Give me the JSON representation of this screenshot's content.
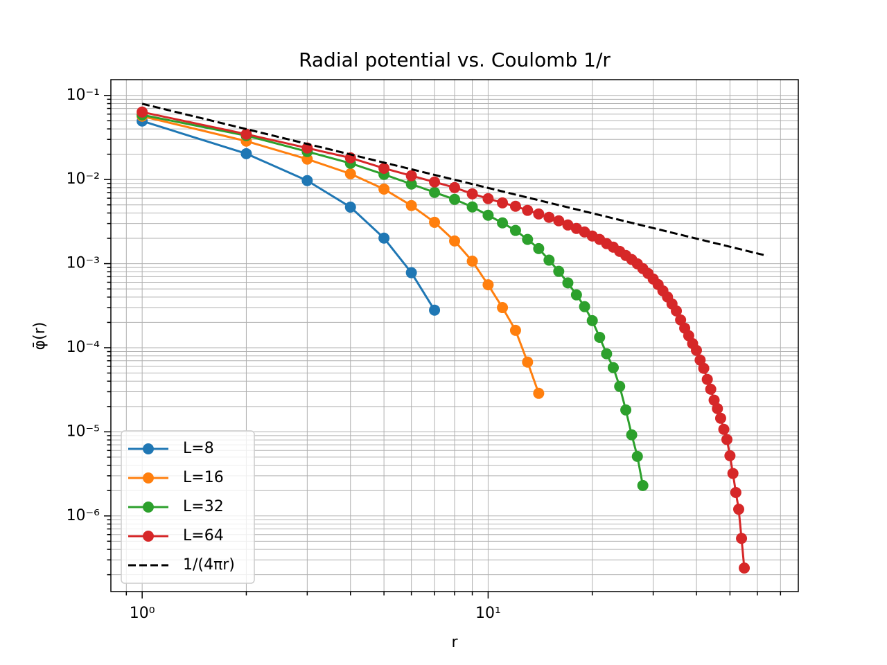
{
  "chart_data": {
    "type": "line",
    "title": "Radial potential vs. Coulomb 1/r",
    "x_label": "r",
    "y_label": "φ̄(r)",
    "xscale": "log",
    "yscale": "log",
    "grid": true,
    "minor_grid": true,
    "legend": "lower left",
    "xlim": [
      0.812,
      78.8
    ],
    "ylim": [
      1.26e-07,
      0.154
    ],
    "xticks": [
      {
        "value": 1,
        "label": "10⁰"
      },
      {
        "value": 10,
        "label": "10¹"
      }
    ],
    "xminorticks": [
      0.9,
      2,
      3,
      4,
      5,
      6,
      7,
      8,
      9,
      20,
      30,
      40,
      50,
      60,
      70
    ],
    "yticks": [
      {
        "value": 1e-06,
        "label": "10⁻⁶"
      },
      {
        "value": 1e-05,
        "label": "10⁻⁵"
      },
      {
        "value": 0.0001,
        "label": "10⁻⁴"
      },
      {
        "value": 0.001,
        "label": "10⁻³"
      },
      {
        "value": 0.01,
        "label": "10⁻²"
      },
      {
        "value": 0.1,
        "label": "10⁻¹"
      }
    ],
    "yminorticks": [
      2e-07,
      3e-07,
      4e-07,
      5e-07,
      6e-07,
      7e-07,
      8e-07,
      9e-07,
      2e-06,
      3e-06,
      4e-06,
      5e-06,
      6e-06,
      7e-06,
      8e-06,
      9e-06,
      2e-05,
      3e-05,
      4e-05,
      5e-05,
      6e-05,
      7e-05,
      8e-05,
      9e-05,
      0.0002,
      0.0003,
      0.0004,
      0.0005,
      0.0006,
      0.0007,
      0.0008,
      0.0009,
      0.002,
      0.003,
      0.004,
      0.005,
      0.006,
      0.007,
      0.008,
      0.009,
      0.02,
      0.03,
      0.04,
      0.05,
      0.06,
      0.07,
      0.08,
      0.09
    ],
    "series": [
      {
        "name": "L=8",
        "color": "#1f77b4",
        "marker": "o",
        "linestyle": "solid",
        "x": [
          1,
          2,
          3,
          4,
          5,
          6,
          7
        ],
        "values": [
          0.0496,
          0.0203,
          0.0097,
          0.0047,
          0.00201,
          0.00078,
          0.00028
        ]
      },
      {
        "name": "L=16",
        "color": "#ff7f0e",
        "marker": "o",
        "linestyle": "solid",
        "x": [
          1,
          2,
          3,
          4,
          5,
          6,
          7,
          8,
          9,
          10,
          11,
          12,
          13,
          14
        ],
        "values": [
          0.0566,
          0.0286,
          0.0175,
          0.0117,
          0.0077,
          0.0049,
          0.0031,
          0.00186,
          0.00107,
          0.00056,
          0.0003,
          0.000161,
          6.75e-05,
          2.87e-05
        ]
      },
      {
        "name": "L=32",
        "color": "#2ca02c",
        "marker": "o",
        "linestyle": "solid",
        "x": [
          1,
          2,
          3,
          4,
          5,
          6,
          7,
          8,
          9,
          10,
          11,
          12,
          13,
          14,
          15,
          16,
          17,
          18,
          19,
          20,
          21,
          22,
          23,
          24,
          25,
          26,
          27,
          28
        ],
        "values": [
          0.0587,
          0.0333,
          0.0215,
          0.0156,
          0.0115,
          0.00883,
          0.00703,
          0.00581,
          0.00472,
          0.00376,
          0.00305,
          0.00248,
          0.00194,
          0.00151,
          0.0011,
          0.00081,
          0.00059,
          0.000425,
          0.000308,
          0.00021,
          0.000133,
          8.47e-05,
          5.8e-05,
          3.47e-05,
          1.82e-05,
          9.2e-06,
          5.1e-06,
          2.3e-06
        ]
      },
      {
        "name": "L=64",
        "color": "#d62728",
        "marker": "o",
        "linestyle": "solid",
        "x": [
          1,
          2,
          3,
          4,
          5,
          6,
          7,
          8,
          9,
          10,
          11,
          12,
          13,
          14,
          15,
          16,
          17,
          18,
          19,
          20,
          21,
          22,
          23,
          24,
          25,
          26,
          27,
          28,
          29,
          30,
          31,
          32,
          33,
          34,
          35,
          36,
          37,
          38,
          39,
          40,
          41,
          42,
          43,
          44,
          45,
          46,
          47,
          48,
          49,
          50,
          51,
          52,
          53,
          54,
          55
        ],
        "values": [
          0.0634,
          0.0346,
          0.0237,
          0.0181,
          0.0136,
          0.0111,
          0.00934,
          0.00802,
          0.00676,
          0.00593,
          0.00528,
          0.00481,
          0.0043,
          0.0039,
          0.00355,
          0.00323,
          0.00288,
          0.00262,
          0.00238,
          0.00213,
          0.00194,
          0.00173,
          0.00157,
          0.0014,
          0.00125,
          0.00112,
          0.000995,
          0.000873,
          0.000764,
          0.000656,
          0.000564,
          0.000475,
          0.000401,
          0.000332,
          0.000274,
          0.000214,
          0.000171,
          0.000139,
          0.000112,
          9.31e-05,
          7.13e-05,
          5.69e-05,
          4.2e-05,
          3.21e-05,
          2.38e-05,
          1.89e-05,
          1.45e-05,
          1.07e-05,
          8.1e-06,
          5.2e-06,
          3.2e-06,
          1.9e-06,
          1.2e-06,
          5.4e-07,
          2.4e-07
        ]
      },
      {
        "name": "1/(4πr)",
        "color": "#000000",
        "marker": "none",
        "linestyle": "dashed",
        "x": [
          1,
          64
        ],
        "values": [
          0.0796,
          0.00124
        ]
      }
    ]
  }
}
